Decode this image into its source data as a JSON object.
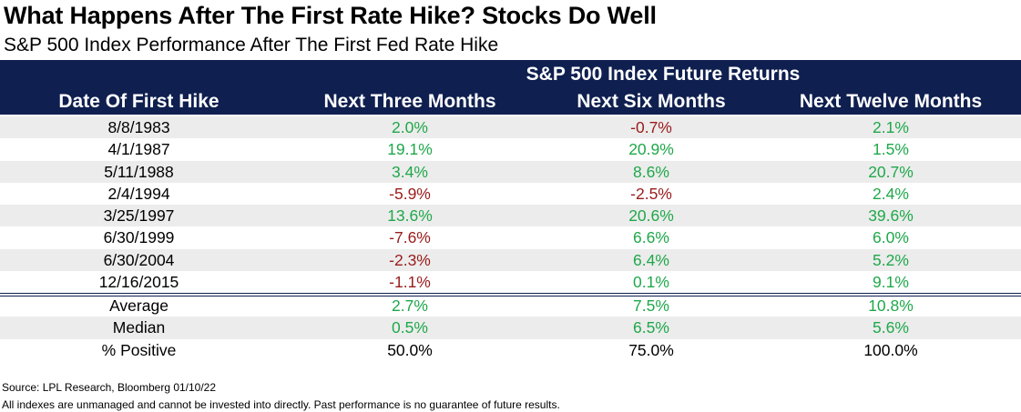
{
  "title": "What Happens After The First Rate Hike? Stocks Do Well",
  "subtitle": "S&P 500 Index Performance After The First Fed Rate Hike",
  "header": {
    "group": "S&P 500 Index Future Returns",
    "columns": [
      "Date Of First Hike",
      "Next Three Months",
      "Next Six Months",
      "Next Twelve Months"
    ]
  },
  "colors": {
    "header_bg": "#0f1f4f",
    "positive": "#1fa84a",
    "negative": "#9a1b1b",
    "shade": "#ececec"
  },
  "rows": [
    {
      "date": "8/8/1983",
      "three": "2.0%",
      "six": "-0.7%",
      "twelve": "2.1%"
    },
    {
      "date": "4/1/1987",
      "three": "19.1%",
      "six": "20.9%",
      "twelve": "1.5%"
    },
    {
      "date": "5/11/1988",
      "three": "3.4%",
      "six": "8.6%",
      "twelve": "20.7%"
    },
    {
      "date": "2/4/1994",
      "three": "-5.9%",
      "six": "-2.5%",
      "twelve": "2.4%"
    },
    {
      "date": "3/25/1997",
      "three": "13.6%",
      "six": "20.6%",
      "twelve": "39.6%"
    },
    {
      "date": "6/30/1999",
      "three": "-7.6%",
      "six": "6.6%",
      "twelve": "6.0%"
    },
    {
      "date": "6/30/2004",
      "three": "-2.3%",
      "six": "6.4%",
      "twelve": "5.2%"
    },
    {
      "date": "12/16/2015",
      "three": "-1.1%",
      "six": "0.1%",
      "twelve": "9.1%"
    }
  ],
  "summary": [
    {
      "label": "Average",
      "three": "2.7%",
      "six": "7.5%",
      "twelve": "10.8%",
      "neutral": false
    },
    {
      "label": "Median",
      "three": "0.5%",
      "six": "6.5%",
      "twelve": "5.6%",
      "neutral": false
    },
    {
      "label": "% Positive",
      "three": "50.0%",
      "six": "75.0%",
      "twelve": "100.0%",
      "neutral": true
    }
  ],
  "footer": {
    "source": "Source: LPL Research, Bloomberg 01/10/22",
    "disclaimer": "All indexes are unmanaged and cannot be invested into directly. Past performance is no guarantee of future results."
  }
}
